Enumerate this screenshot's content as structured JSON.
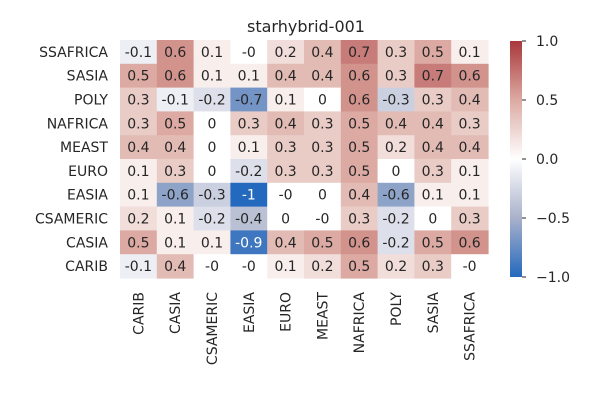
{
  "chart_data": {
    "type": "heatmap",
    "title": "starhybrid-001",
    "rows": [
      "SSAFRICA",
      "SASIA",
      "POLY",
      "NAFRICA",
      "MEAST",
      "EURO",
      "EASIA",
      "CSAMERIC",
      "CASIA",
      "CARIB"
    ],
    "columns": [
      "CARIB",
      "CASIA",
      "CSAMERIC",
      "EASIA",
      "EURO",
      "MEAST",
      "NAFRICA",
      "POLY",
      "SASIA",
      "SSAFRICA"
    ],
    "values": [
      [
        -0.1,
        0.6,
        0.1,
        -0.0,
        0.2,
        0.4,
        0.7,
        0.3,
        0.5,
        0.1
      ],
      [
        0.5,
        0.6,
        0.1,
        0.1,
        0.4,
        0.4,
        0.6,
        0.3,
        0.7,
        0.6
      ],
      [
        0.3,
        -0.1,
        -0.2,
        -0.7,
        0.1,
        0.0,
        0.6,
        -0.3,
        0.3,
        0.4
      ],
      [
        0.3,
        0.5,
        0.0,
        0.3,
        0.4,
        0.3,
        0.5,
        0.4,
        0.4,
        0.3
      ],
      [
        0.4,
        0.4,
        0.0,
        0.1,
        0.3,
        0.3,
        0.5,
        0.2,
        0.4,
        0.4
      ],
      [
        0.1,
        0.3,
        0.0,
        -0.2,
        0.3,
        0.3,
        0.5,
        0.0,
        0.3,
        0.1
      ],
      [
        0.1,
        -0.6,
        -0.3,
        -1.0,
        -0.0,
        0.0,
        0.4,
        -0.6,
        0.1,
        0.1
      ],
      [
        0.2,
        0.1,
        -0.2,
        -0.4,
        0.0,
        -0.0,
        0.3,
        -0.2,
        0.0,
        0.3
      ],
      [
        0.5,
        0.1,
        0.1,
        -0.9,
        0.4,
        0.5,
        0.6,
        -0.2,
        0.5,
        0.6
      ],
      [
        -0.1,
        0.4,
        -0.0,
        -0.0,
        0.1,
        0.2,
        0.5,
        0.2,
        0.3,
        -0.0
      ]
    ],
    "labels": [
      [
        "-0.1",
        "0.6",
        "0.1",
        "-0",
        "0.2",
        "0.4",
        "0.7",
        "0.3",
        "0.5",
        "0.1"
      ],
      [
        "0.5",
        "0.6",
        "0.1",
        "0.1",
        "0.4",
        "0.4",
        "0.6",
        "0.3",
        "0.7",
        "0.6"
      ],
      [
        "0.3",
        "-0.1",
        "-0.2",
        "-0.7",
        "0.1",
        "0",
        "0.6",
        "-0.3",
        "0.3",
        "0.4"
      ],
      [
        "0.3",
        "0.5",
        "0",
        "0.3",
        "0.4",
        "0.3",
        "0.5",
        "0.4",
        "0.4",
        "0.3"
      ],
      [
        "0.4",
        "0.4",
        "0",
        "0.1",
        "0.3",
        "0.3",
        "0.5",
        "0.2",
        "0.4",
        "0.4"
      ],
      [
        "0.1",
        "0.3",
        "0",
        "-0.2",
        "0.3",
        "0.3",
        "0.5",
        "0",
        "0.3",
        "0.1"
      ],
      [
        "0.1",
        "-0.6",
        "-0.3",
        "-1",
        "-0",
        "0",
        "0.4",
        "-0.6",
        "0.1",
        "0.1"
      ],
      [
        "0.2",
        "0.1",
        "-0.2",
        "-0.4",
        "0",
        "-0",
        "0.3",
        "-0.2",
        "0",
        "0.3"
      ],
      [
        "0.5",
        "0.1",
        "0.1",
        "-0.9",
        "0.4",
        "0.5",
        "0.6",
        "-0.2",
        "0.5",
        "0.6"
      ],
      [
        "-0.1",
        "0.4",
        "-0",
        "-0",
        "0.1",
        "0.2",
        "0.5",
        "0.2",
        "0.3",
        "-0"
      ]
    ],
    "vmin": -1.0,
    "vmax": 1.0,
    "colormap": "vlag",
    "colormap_stops": [
      "#2369bd",
      "#a9b1cb",
      "#ffffff",
      "#dcaaa2",
      "#a9373b"
    ],
    "colorbar_ticks": [
      1.0,
      0.5,
      0.0,
      -0.5,
      -1.0
    ],
    "colorbar_tick_labels": [
      "1.0",
      "0.5",
      "0.0",
      "−0.5",
      "−1.0"
    ],
    "xtick_rotation": "vertical",
    "colorbar_position": "right"
  }
}
